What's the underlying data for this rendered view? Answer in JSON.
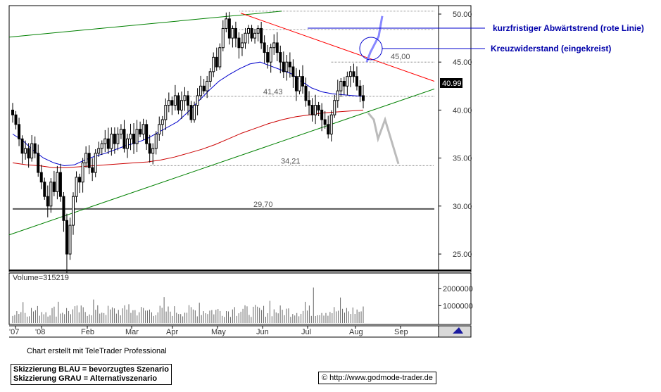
{
  "chart_data": {
    "type": "candlestick",
    "price_axis": {
      "ticks": [
        "50.00",
        "45.00",
        "40.00",
        "35.00",
        "30.00",
        "25.00"
      ],
      "ylim": [
        23.5,
        50.5
      ]
    },
    "volume_axis": {
      "ticks": [
        "2000000",
        "1000000"
      ]
    },
    "x_ticks": [
      "'07",
      "'08",
      "Feb",
      "Mar",
      "Apr",
      "May",
      "Jun",
      "Jul",
      "Aug",
      "Sep"
    ],
    "last_price": "40.99",
    "volume_label": "Volume=315219",
    "levels": [
      {
        "value": 41.43,
        "label": "41,43"
      },
      {
        "value": 34.21,
        "label": "34,21"
      },
      {
        "value": 29.7,
        "label": "29,70"
      },
      {
        "value": 45.0,
        "label": "45,00"
      }
    ],
    "annotations": [
      {
        "text": "kurzfristiger Abwärtstrend (rote Linie)"
      },
      {
        "text": "Kreuzwiderstand (eingekreist)"
      }
    ],
    "series": [
      {
        "name": "close",
        "values": [
          39.5,
          38.5,
          37.0,
          35.5,
          36.0,
          35.0,
          36.5,
          35.5,
          33.5,
          32.5,
          31.0,
          30.0,
          32.5,
          31.5,
          33.5,
          31.0,
          28.5,
          25.0,
          28.0,
          31.0,
          33.0,
          32.5,
          34.5,
          35.5,
          34.0,
          33.5,
          35.5,
          36.0,
          36.5,
          37.0,
          36.0,
          37.5,
          36.5,
          37.5,
          38.0,
          36.0,
          37.0,
          37.5,
          36.5,
          38.0,
          37.5,
          38.5,
          36.5,
          35.5,
          36.0,
          37.5,
          38.5,
          39.0,
          40.5,
          41.0,
          40.5,
          41.5,
          40.0,
          41.0,
          41.5,
          40.5,
          39.0,
          40.5,
          41.5,
          42.5,
          42.0,
          43.0,
          44.0,
          45.5,
          44.5,
          46.5,
          48.5,
          49.5,
          47.5,
          48.5,
          47.5,
          46.5,
          47.0,
          48.0,
          48.5,
          47.5,
          48.0,
          48.5,
          47.0,
          46.0,
          45.0,
          46.5,
          47.0,
          46.0,
          45.0,
          44.0,
          45.0,
          44.5,
          43.5,
          42.0,
          43.5,
          42.5,
          41.0,
          40.5,
          39.5,
          40.5,
          40.0,
          39.0,
          38.5,
          37.5,
          39.5,
          41.0,
          42.0,
          43.0,
          42.5,
          43.5,
          44.0,
          43.5,
          42.5,
          41.5,
          40.99
        ]
      },
      {
        "name": "sma50",
        "values": [
          37.5,
          36.8,
          35.8,
          35.0,
          34.5,
          34.2,
          34.3,
          34.8,
          35.2,
          35.5,
          35.9,
          36.3,
          36.6,
          37.0,
          37.6,
          38.2,
          38.8,
          39.8,
          40.9,
          42.0,
          43.0,
          43.7,
          44.3,
          44.8,
          45.0,
          44.6,
          44.2,
          43.8,
          43.0,
          42.3,
          41.9,
          41.7,
          41.6,
          41.5,
          41.43
        ]
      },
      {
        "name": "sma200",
        "values": [
          34.5,
          34.3,
          34.2,
          34.0,
          34.0,
          34.1,
          34.2,
          34.3,
          34.4,
          34.5,
          34.6,
          34.8,
          35.1,
          35.5,
          35.9,
          36.4,
          37.0,
          37.6,
          38.1,
          38.6,
          39.0,
          39.3,
          39.5,
          39.7,
          39.8,
          39.9,
          40.0
        ]
      }
    ],
    "trendlines": [
      {
        "name": "upper-channel",
        "color": "#008000",
        "from": [
          "'07",
          47.6
        ],
        "to": [
          "Jun",
          50.3
        ]
      },
      {
        "name": "lower-support",
        "color": "#008000",
        "from": [
          "'07",
          27.0
        ],
        "to": [
          "Sep",
          42.2
        ]
      },
      {
        "name": "short-term-downtrend",
        "color": "#ff0000",
        "from": [
          "May",
          50.1
        ],
        "to": [
          "Sep",
          43.0
        ]
      }
    ],
    "scenario_paths": [
      {
        "name": "preferred",
        "color": "#8888ff",
        "points": [
          [
            "Aug",
            45.0
          ],
          [
            "Aug",
            46.0
          ],
          [
            "Sep",
            47.7
          ],
          [
            "Sep",
            49.8
          ]
        ]
      },
      {
        "name": "alternative",
        "color": "#bbbbbb",
        "points": [
          [
            "Aug",
            39.7
          ],
          [
            "Aug",
            39.0
          ],
          [
            "Aug",
            37.0
          ],
          [
            "Aug",
            39.0
          ],
          [
            "Sep",
            34.4
          ]
        ]
      }
    ],
    "colors": {
      "candle": "#000000",
      "sma50": "#0000cc",
      "sma200": "#cc0000",
      "grid": "#aaaaaa",
      "annotation": "#0000aa"
    }
  },
  "footer": {
    "credit": "Chart erstellt mit TeleTrader Professional",
    "legend_blue": "Skizzierung BLAU = bevorzugtes Szenario",
    "legend_gray": "Skizzierung GRAU = Alternativszenario",
    "source": "© http://www.godmode-trader.de"
  }
}
